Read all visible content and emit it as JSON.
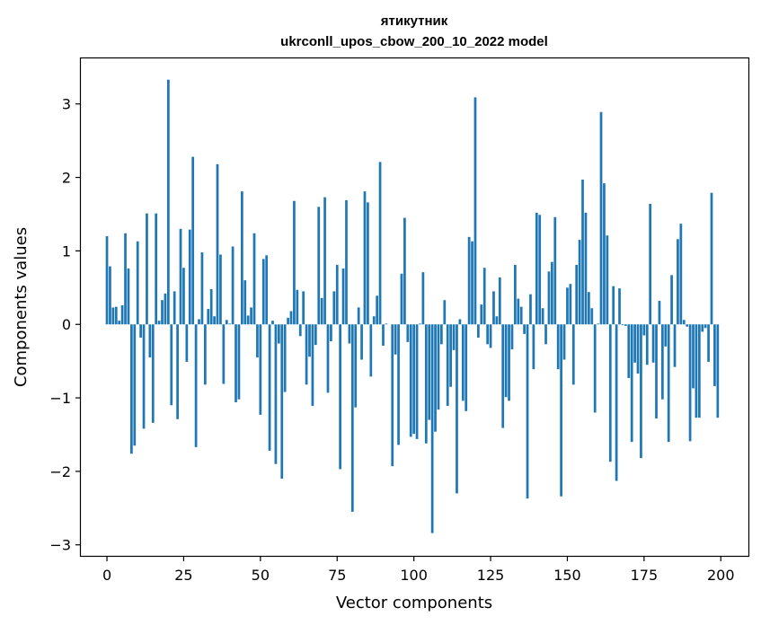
{
  "chart_data": {
    "type": "bar",
    "title_lines": [
      "ятикутник",
      "ukrconll_upos_cbow_200_10_2022 model"
    ],
    "xlabel": "Vector components",
    "ylabel": "Components values",
    "xlim": [
      -8.5,
      209
    ],
    "ylim": [
      -3.15,
      3.62
    ],
    "xticks": [
      0,
      25,
      50,
      75,
      100,
      125,
      150,
      175,
      200
    ],
    "xtick_labels": [
      "0",
      "25",
      "50",
      "75",
      "100",
      "125",
      "150",
      "175",
      "200"
    ],
    "yticks": [
      -3,
      -2,
      -1,
      0,
      1,
      2,
      3
    ],
    "ytick_labels": [
      "−3",
      "−2",
      "−1",
      "0",
      "1",
      "2",
      "3"
    ],
    "bar_color": "#1f77b4",
    "grid": false,
    "x": [
      0,
      1,
      2,
      3,
      4,
      5,
      6,
      7,
      8,
      9,
      10,
      11,
      12,
      13,
      14,
      15,
      16,
      17,
      18,
      19,
      20,
      21,
      22,
      23,
      24,
      25,
      26,
      27,
      28,
      29,
      30,
      31,
      32,
      33,
      34,
      35,
      36,
      37,
      38,
      39,
      40,
      41,
      42,
      43,
      44,
      45,
      46,
      47,
      48,
      49,
      50,
      51,
      52,
      53,
      54,
      55,
      56,
      57,
      58,
      59,
      60,
      61,
      62,
      63,
      64,
      65,
      66,
      67,
      68,
      69,
      70,
      71,
      72,
      73,
      74,
      75,
      76,
      77,
      78,
      79,
      80,
      81,
      82,
      83,
      84,
      85,
      86,
      87,
      88,
      89,
      90,
      91,
      92,
      93,
      94,
      95,
      96,
      97,
      98,
      99,
      100,
      101,
      102,
      103,
      104,
      105,
      106,
      107,
      108,
      109,
      110,
      111,
      112,
      113,
      114,
      115,
      116,
      117,
      118,
      119,
      120,
      121,
      122,
      123,
      124,
      125,
      126,
      127,
      128,
      129,
      130,
      131,
      132,
      133,
      134,
      135,
      136,
      137,
      138,
      139,
      140,
      141,
      142,
      143,
      144,
      145,
      146,
      147,
      148,
      149,
      150,
      151,
      152,
      153,
      154,
      155,
      156,
      157,
      158,
      159,
      160,
      161,
      162,
      163,
      164,
      165,
      166,
      167,
      168,
      169,
      170,
      171,
      172,
      173,
      174,
      175,
      176,
      177,
      178,
      179,
      180,
      181,
      182,
      183,
      184,
      185,
      186,
      187,
      188,
      189,
      190,
      191,
      192,
      193,
      194,
      195,
      196,
      197,
      198,
      199
    ],
    "values": [
      1.2,
      0.79,
      0.23,
      0.24,
      0.05,
      0.26,
      1.24,
      0.76,
      -1.76,
      -1.65,
      1.13,
      -0.18,
      -1.42,
      1.51,
      -0.45,
      -1.34,
      1.51,
      0.05,
      0.33,
      0.42,
      3.33,
      -1.1,
      0.45,
      -1.29,
      1.3,
      0.77,
      -0.51,
      1.29,
      2.28,
      -1.67,
      0.07,
      0.98,
      -0.82,
      0.21,
      0.48,
      0.11,
      2.18,
      0.95,
      -0.81,
      0.06,
      0.01,
      1.06,
      -1.06,
      -1.02,
      1.81,
      0.6,
      0.12,
      0.23,
      1.24,
      -0.45,
      -1.23,
      0.89,
      0.94,
      -1.72,
      0.05,
      -1.9,
      -0.26,
      -2.1,
      -0.92,
      0.09,
      0.18,
      1.68,
      0.47,
      -0.16,
      0.45,
      -0.82,
      -0.44,
      -1.11,
      -0.28,
      1.6,
      0.36,
      1.73,
      -0.93,
      -0.23,
      0.45,
      0.81,
      -1.97,
      0.76,
      1.69,
      -0.26,
      -2.55,
      -1.13,
      0.23,
      -0.48,
      1.81,
      1.66,
      -0.71,
      0.11,
      0.39,
      2.21,
      -0.29,
      0.01,
      0.0,
      -1.93,
      -0.41,
      -1.64,
      0.69,
      1.45,
      -0.24,
      -1.53,
      -1.49,
      -1.56,
      0.01,
      0.71,
      -1.62,
      -1.3,
      -2.84,
      -1.46,
      -1.16,
      -0.27,
      0.33,
      -1.11,
      -0.85,
      -0.35,
      -2.3,
      0.07,
      -1.04,
      -1.18,
      1.19,
      1.13,
      3.09,
      -0.18,
      0.27,
      0.77,
      -0.27,
      -0.32,
      0.45,
      0.11,
      0.64,
      -1.41,
      -0.99,
      -1.04,
      -0.34,
      0.81,
      0.35,
      0.24,
      -0.13,
      -2.37,
      0.41,
      -0.61,
      1.52,
      1.49,
      0.22,
      -0.27,
      0.72,
      0.85,
      1.46,
      -0.61,
      -2.34,
      -0.48,
      0.5,
      0.55,
      -0.82,
      0.81,
      1.15,
      1.97,
      1.52,
      0.44,
      0.22,
      -1.2,
      0.01,
      2.89,
      1.92,
      1.21,
      -1.87,
      0.52,
      -2.13,
      0.49,
      -0.01,
      -0.02,
      -0.73,
      -1.6,
      -0.52,
      -0.67,
      -1.82,
      -0.15,
      -0.55,
      1.64,
      -0.52,
      -1.28,
      0.32,
      -1.02,
      -0.3,
      -1.6,
      0.67,
      -0.58,
      1.16,
      1.37,
      0.06,
      -0.03,
      -1.59,
      -0.87,
      -1.27,
      -1.27,
      -0.1,
      -0.05,
      -0.51,
      1.79,
      -0.84,
      -1.27
    ]
  }
}
